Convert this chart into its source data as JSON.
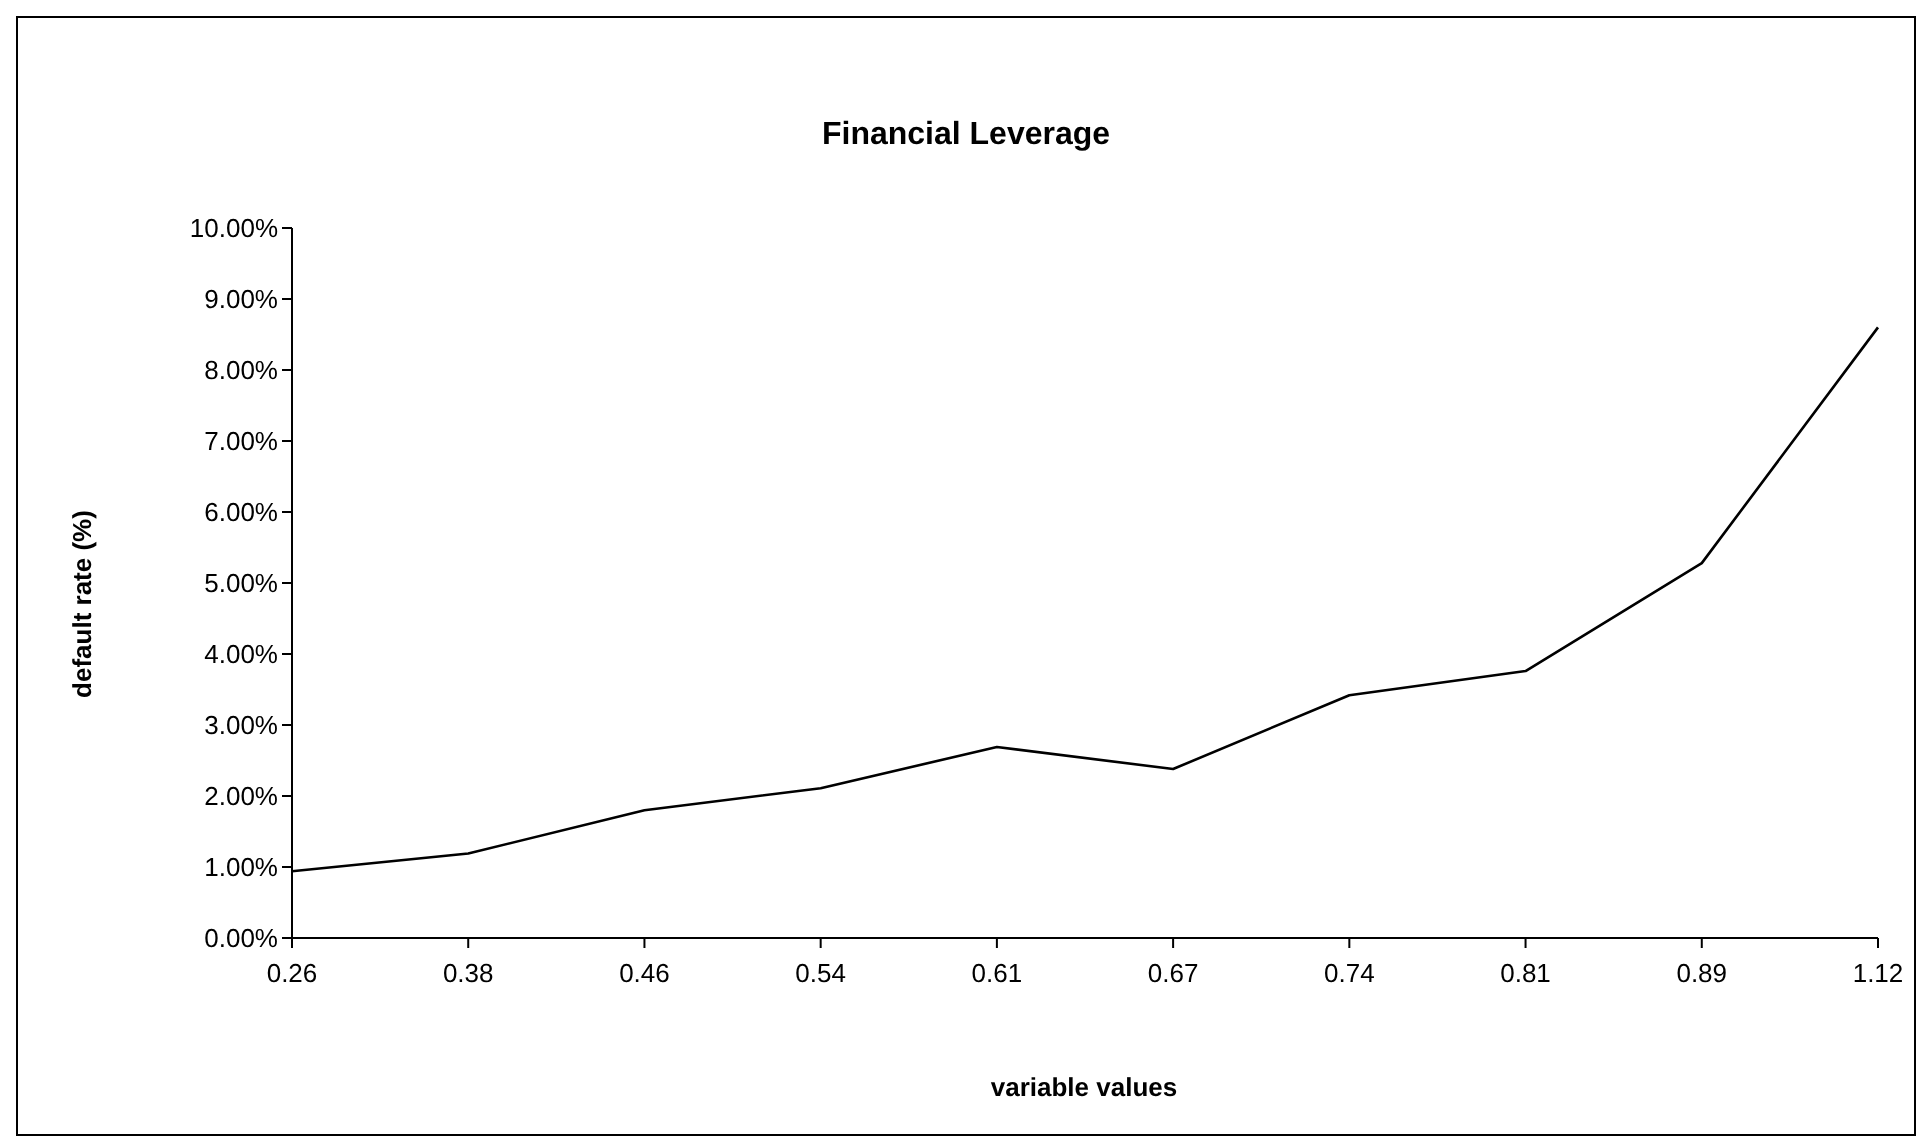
{
  "chart_data": {
    "type": "line",
    "title": "Financial Leverage",
    "xlabel": "variable values",
    "ylabel": "default rate (%)",
    "categories": [
      "0.26",
      "0.38",
      "0.46",
      "0.54",
      "0.61",
      "0.67",
      "0.74",
      "0.81",
      "0.89",
      "1.12"
    ],
    "series": [
      {
        "color": "#000000",
        "values": [
          0.94,
          1.19,
          1.8,
          2.11,
          2.69,
          2.38,
          3.42,
          3.76,
          5.28,
          8.6
        ]
      }
    ],
    "ylim": [
      0,
      10
    ],
    "yticks": [
      {
        "value": 0,
        "label": "0.00%"
      },
      {
        "value": 1,
        "label": "1.00%"
      },
      {
        "value": 2,
        "label": "2.00%"
      },
      {
        "value": 3,
        "label": "3.00%"
      },
      {
        "value": 4,
        "label": "4.00%"
      },
      {
        "value": 5,
        "label": "5.00%"
      },
      {
        "value": 6,
        "label": "6.00%"
      },
      {
        "value": 7,
        "label": "7.00%"
      },
      {
        "value": 8,
        "label": "8.00%"
      },
      {
        "value": 9,
        "label": "9.00%"
      },
      {
        "value": 10,
        "label": "10.00%"
      }
    ],
    "grid": false,
    "legend": false,
    "marker": "none",
    "line_style": "solid"
  }
}
